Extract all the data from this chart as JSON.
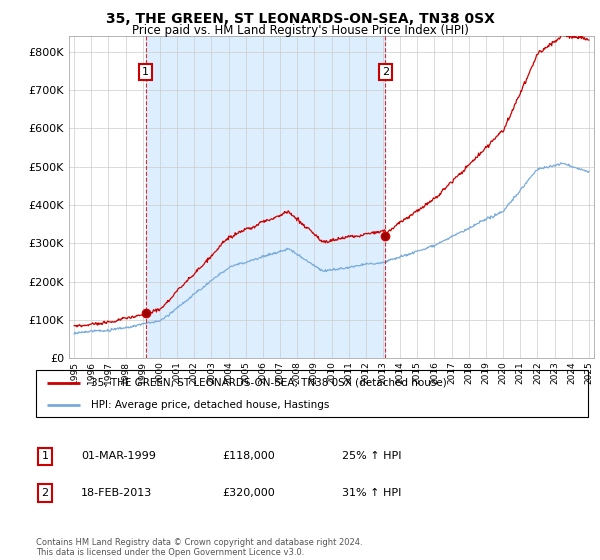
{
  "title": "35, THE GREEN, ST LEONARDS-ON-SEA, TN38 0SX",
  "subtitle": "Price paid vs. HM Land Registry's House Price Index (HPI)",
  "legend_line1": "35, THE GREEN, ST LEONARDS-ON-SEA, TN38 0SX (detached house)",
  "legend_line2": "HPI: Average price, detached house, Hastings",
  "annotation1_date": "01-MAR-1999",
  "annotation1_price": "£118,000",
  "annotation1_hpi": "25% ↑ HPI",
  "annotation1_year": 1999.17,
  "annotation1_value": 118000,
  "annotation2_date": "18-FEB-2013",
  "annotation2_price": "£320,000",
  "annotation2_hpi": "31% ↑ HPI",
  "annotation2_year": 2013.13,
  "annotation2_value": 320000,
  "footer": "Contains HM Land Registry data © Crown copyright and database right 2024.\nThis data is licensed under the Open Government Licence v3.0.",
  "red_color": "#cc0000",
  "blue_color": "#7aacdb",
  "shade_color": "#ddeeff",
  "vline_color": "#cc0000",
  "grid_color": "#cccccc",
  "bg_color": "#ffffff",
  "ylim": [
    0,
    840000
  ],
  "xlim_start": 1994.7,
  "xlim_end": 2025.3
}
